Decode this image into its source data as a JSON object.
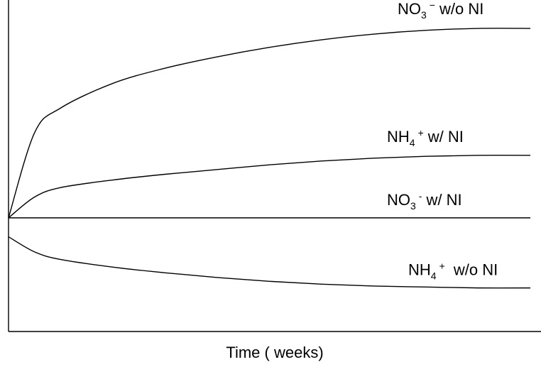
{
  "chart_data": {
    "type": "line",
    "title": "",
    "xlabel": "Time ( weeks)",
    "ylabel": "",
    "grid": false,
    "legend": "inline-labels",
    "series": [
      {
        "label": {
          "base": "NO",
          "sub": "3",
          "sup": "−",
          "suffix": "w/o NI"
        },
        "x": [
          0,
          0.5,
          1,
          2,
          3,
          4,
          5,
          6,
          7,
          8,
          9,
          10
        ],
        "y": [
          0,
          0.45,
          0.58,
          0.71,
          0.79,
          0.85,
          0.9,
          0.94,
          0.97,
          0.99,
          1.0,
          1.0
        ]
      },
      {
        "label": {
          "base": "NH",
          "sub": "4",
          "sup": "+",
          "suffix": "w/ NI"
        },
        "x": [
          0,
          0.5,
          1,
          2,
          3,
          4,
          5,
          6,
          7,
          8,
          9,
          10
        ],
        "y": [
          0,
          0.11,
          0.16,
          0.2,
          0.23,
          0.255,
          0.28,
          0.3,
          0.315,
          0.325,
          0.33,
          0.33
        ]
      },
      {
        "label": {
          "base": "NO",
          "sub": "3",
          "sup": "-",
          "suffix": "w/ NI"
        },
        "x": [
          0,
          10
        ],
        "y": [
          0,
          0
        ]
      },
      {
        "label": {
          "base": "NH",
          "sub": "4",
          "sup": "+",
          "suffix": " w/o NI"
        },
        "x": [
          0,
          0.5,
          1,
          2,
          3,
          4,
          5,
          6,
          7,
          8,
          9,
          10
        ],
        "y": [
          -0.1,
          -0.18,
          -0.22,
          -0.26,
          -0.29,
          -0.315,
          -0.335,
          -0.35,
          -0.36,
          -0.365,
          -0.37,
          -0.37
        ]
      }
    ],
    "xlim": [
      0,
      10
    ],
    "ylim": [
      -0.6,
      1.15
    ]
  }
}
